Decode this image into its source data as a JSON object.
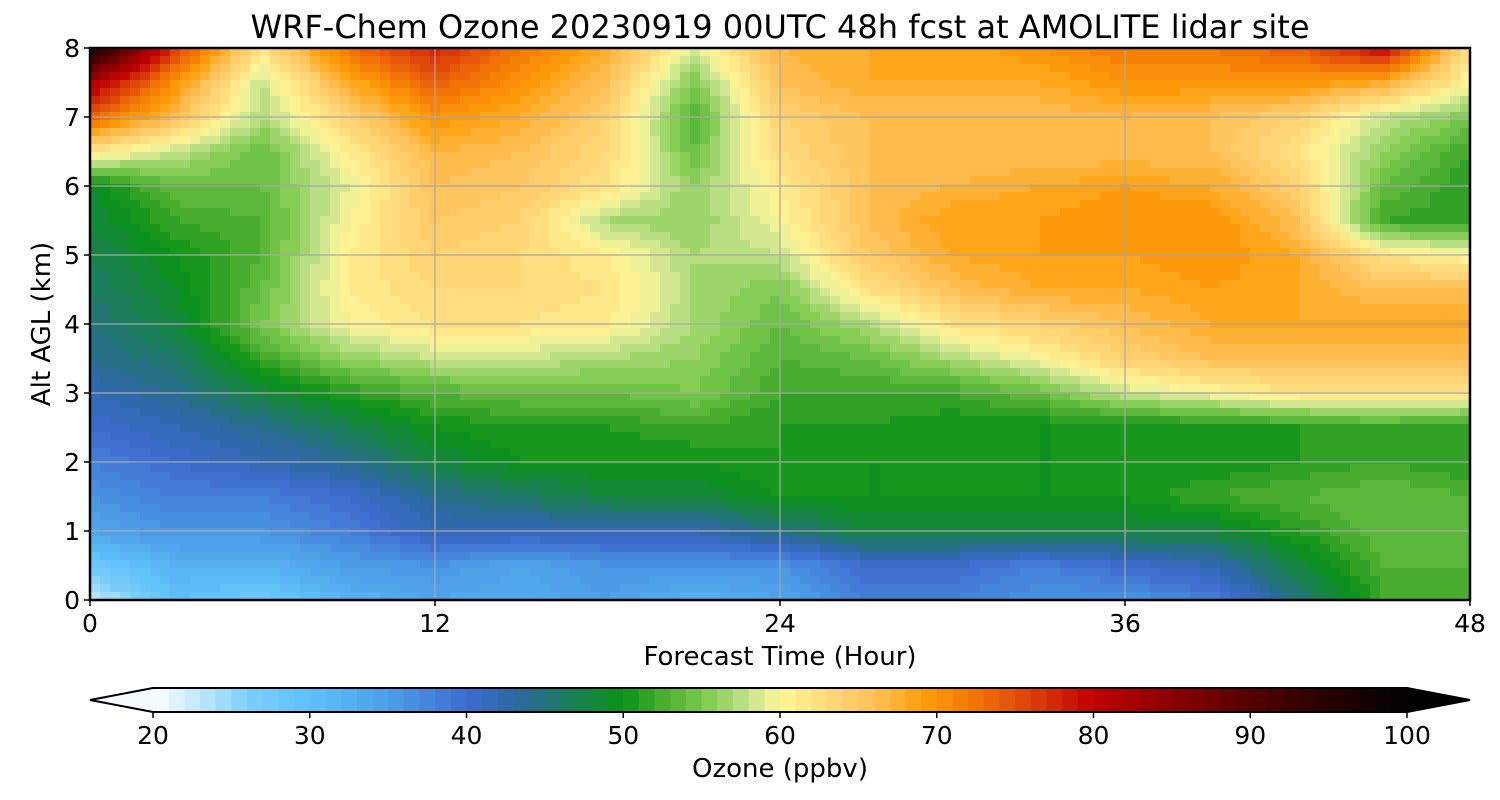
{
  "chart_data": {
    "type": "heatmap",
    "title": "WRF-Chem Ozone  20230919 00UTC 48h fcst at AMOLITE lidar site",
    "xlabel": "Forecast Time (Hour)",
    "ylabel": "Alt AGL (km)",
    "xlim": [
      0,
      48
    ],
    "ylim": [
      0,
      8
    ],
    "x_ticks": [
      0,
      12,
      24,
      36,
      48
    ],
    "x_tick_labels": [
      "0",
      "12",
      "24",
      "36",
      "48"
    ],
    "y_ticks": [
      0,
      1,
      2,
      3,
      4,
      5,
      6,
      7,
      8
    ],
    "y_tick_labels": [
      "0",
      "1",
      "2",
      "3",
      "4",
      "5",
      "6",
      "7",
      "8"
    ],
    "grid": true,
    "x": [
      0,
      3,
      6,
      9,
      12,
      15,
      18,
      21,
      24,
      27,
      30,
      33,
      36,
      39,
      42,
      45,
      48
    ],
    "y": [
      0,
      0.5,
      1,
      1.5,
      2,
      2.5,
      3,
      3.5,
      4,
      4.5,
      5,
      5.5,
      6,
      6.5,
      7,
      7.5,
      8
    ],
    "z": [
      [
        22,
        30,
        28,
        32,
        34,
        33,
        35,
        32,
        34,
        38,
        38,
        36,
        36,
        38,
        45,
        52,
        52
      ],
      [
        28,
        32,
        32,
        35,
        36,
        34,
        36,
        36,
        36,
        40,
        40,
        38,
        40,
        42,
        48,
        53,
        53
      ],
      [
        34,
        36,
        36,
        38,
        42,
        42,
        42,
        42,
        45,
        48,
        48,
        48,
        48,
        48,
        51,
        54,
        53
      ],
      [
        36,
        38,
        38,
        40,
        44,
        46,
        48,
        48,
        50,
        50,
        50,
        50,
        50,
        52,
        53,
        54,
        53
      ],
      [
        38,
        40,
        42,
        44,
        48,
        50,
        50,
        50,
        51,
        50,
        50,
        50,
        50,
        50,
        51,
        52,
        51
      ],
      [
        40,
        42,
        44,
        47,
        50,
        51,
        51,
        52,
        51,
        51,
        50,
        50,
        50,
        50,
        51,
        52,
        51
      ],
      [
        42,
        44,
        48,
        51,
        53,
        54,
        54,
        55,
        52,
        52,
        52,
        54,
        58,
        60,
        62,
        62,
        62
      ],
      [
        44,
        46,
        52,
        56,
        58,
        58,
        57,
        56,
        53,
        54,
        57,
        60,
        64,
        66,
        66,
        66,
        66
      ],
      [
        45,
        48,
        55,
        60,
        62,
        62,
        61,
        57,
        54,
        57,
        62,
        64,
        66,
        68,
        68,
        68,
        68
      ],
      [
        46,
        49,
        54,
        61,
        63,
        63,
        62,
        57,
        55,
        62,
        66,
        68,
        68,
        69,
        68,
        66,
        66
      ],
      [
        47,
        50,
        53,
        61,
        64,
        63,
        61,
        57,
        58,
        65,
        68,
        69,
        69,
        70,
        68,
        62,
        60
      ],
      [
        48,
        52,
        53,
        60,
        65,
        64,
        57,
        56,
        60,
        66,
        69,
        69,
        70,
        70,
        66,
        52,
        51
      ],
      [
        49,
        54,
        54,
        59,
        66,
        65,
        62,
        56,
        61,
        66,
        67,
        68,
        69,
        68,
        64,
        54,
        51
      ],
      [
        62,
        58,
        54,
        61,
        67,
        66,
        63,
        54,
        63,
        66,
        66,
        66,
        66,
        66,
        62,
        56,
        52
      ],
      [
        74,
        66,
        57,
        64,
        70,
        68,
        64,
        53,
        64,
        66,
        66,
        66,
        67,
        66,
        64,
        58,
        55
      ],
      [
        82,
        70,
        58,
        68,
        74,
        70,
        66,
        55,
        66,
        68,
        68,
        68,
        70,
        70,
        70,
        68,
        60
      ],
      [
        98,
        76,
        62,
        73,
        78,
        72,
        68,
        59,
        67,
        68,
        68,
        70,
        72,
        72,
        74,
        80,
        62
      ]
    ],
    "colorbar": {
      "label": "Ozone  (ppbv)",
      "min": 20,
      "max": 100,
      "step": 1,
      "extend": "both",
      "ticks": [
        20,
        30,
        40,
        50,
        60,
        70,
        80,
        90,
        100
      ],
      "tick_labels": [
        "20",
        "30",
        "40",
        "50",
        "60",
        "70",
        "80",
        "90",
        "100"
      ],
      "color_stops": [
        [
          20,
          "#ffffff"
        ],
        [
          26,
          "#7fcff9"
        ],
        [
          30,
          "#5ec0fa"
        ],
        [
          35,
          "#4d9ee8"
        ],
        [
          40,
          "#3e6ccf"
        ],
        [
          43,
          "#2d67a5"
        ],
        [
          50,
          "#0a9215"
        ],
        [
          52,
          "#3fa72b"
        ],
        [
          55,
          "#79c84b"
        ],
        [
          58,
          "#c4e38c"
        ],
        [
          60,
          "#fff79a"
        ],
        [
          63,
          "#ffd97a"
        ],
        [
          66,
          "#ffc25a"
        ],
        [
          69,
          "#ff9f0c"
        ],
        [
          72,
          "#f57a05"
        ],
        [
          75,
          "#e4500b"
        ],
        [
          80,
          "#c00000"
        ],
        [
          86,
          "#800000"
        ],
        [
          92,
          "#400000"
        ],
        [
          100,
          "#000000"
        ]
      ]
    }
  }
}
